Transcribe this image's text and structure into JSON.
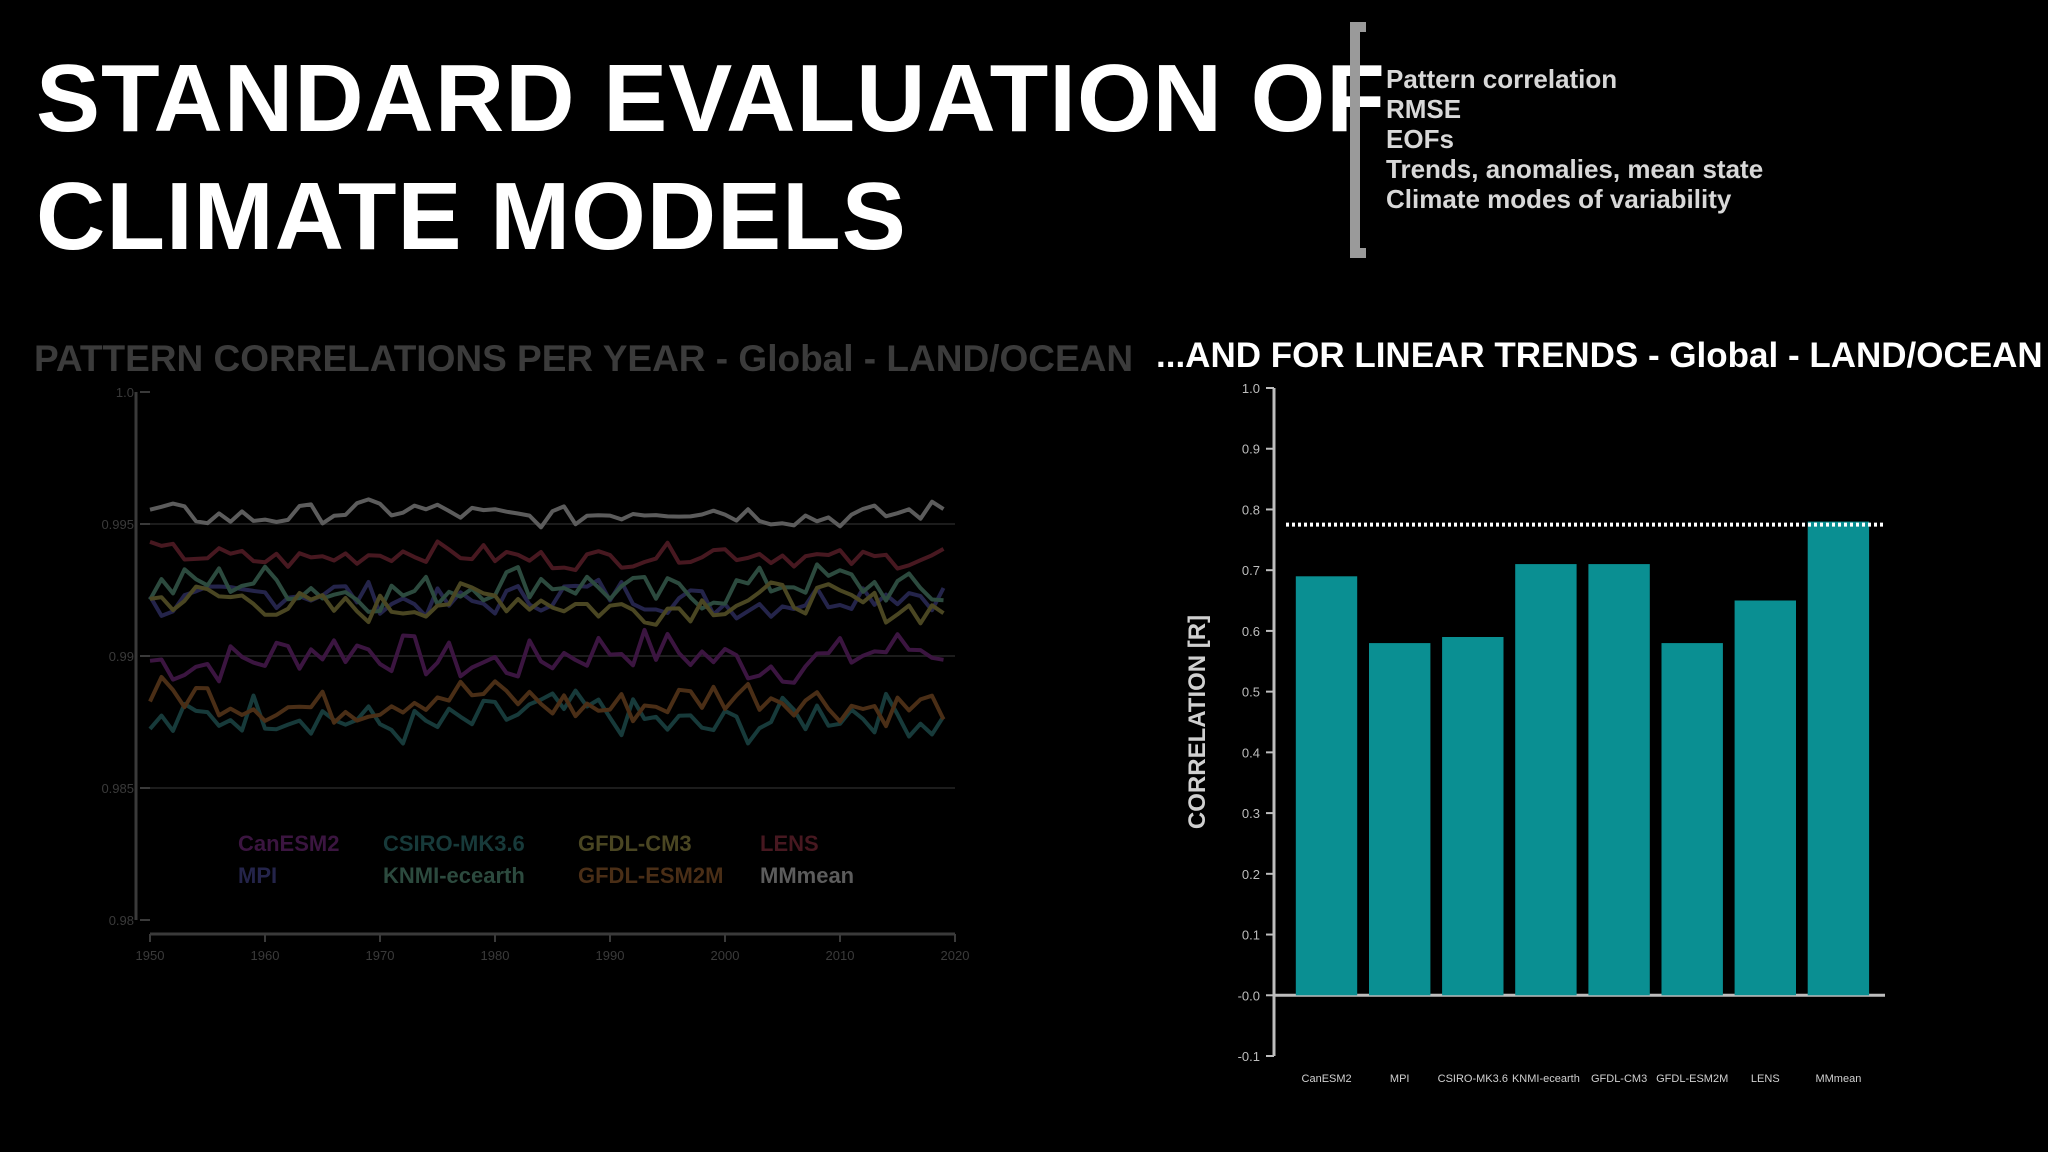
{
  "slide": {
    "title_lines": [
      "STANDARD EVALUATION OF",
      "CLIMATE MODELS"
    ],
    "metrics": [
      "Pattern correlation",
      "RMSE",
      "EOFs",
      "Trends, anomalies, mean state",
      "Climate modes of variability"
    ]
  },
  "colors": {
    "background": "#000000",
    "bar": "#0a8f92",
    "dim_axis": "#3a3a3a",
    "bright_axis": "#bdbdbd"
  },
  "chart_data": [
    {
      "type": "line",
      "title": "PATTERN CORRELATIONS PER YEAR - Global - LAND/OCEAN",
      "dimmed": true,
      "xlabel": "",
      "ylabel": "",
      "xlim": [
        1950,
        2020
      ],
      "ylim": [
        0.98,
        1.0
      ],
      "x_ticks": [
        1950,
        1960,
        1970,
        1980,
        1990,
        2000,
        2010,
        2020
      ],
      "y_ticks": [
        {
          "value": 0.98,
          "label": "0.98"
        },
        {
          "value": 0.985,
          "label": "0.985"
        },
        {
          "value": 0.99,
          "label": "0.99"
        },
        {
          "value": 0.995,
          "label": "0.995"
        },
        {
          "value": 1.0,
          "label": "1.0"
        }
      ],
      "grid": "horizontal",
      "legend_position": "bottom",
      "series": [
        {
          "name": "CanESM2",
          "color": "#3b1540",
          "base": 0.99,
          "amp": 0.0008
        },
        {
          "name": "MPI",
          "color": "#24244a",
          "base": 0.9922,
          "amp": 0.0006
        },
        {
          "name": "CSIRO-MK3.6",
          "color": "#173a3a",
          "base": 0.9876,
          "amp": 0.0008
        },
        {
          "name": "KNMI-ecearth",
          "color": "#2c4a3e",
          "base": 0.9926,
          "amp": 0.0007
        },
        {
          "name": "GFDL-CM3",
          "color": "#4a4622",
          "base": 0.992,
          "amp": 0.0006
        },
        {
          "name": "GFDL-ESM2M",
          "color": "#4a2e16",
          "base": 0.9883,
          "amp": 0.0007
        },
        {
          "name": "LENS",
          "color": "#471820",
          "base": 0.9938,
          "amp": 0.0004
        },
        {
          "name": "MMmean",
          "color": "#5c5c5c",
          "base": 0.9954,
          "amp": 0.0004
        }
      ]
    },
    {
      "type": "bar",
      "title": "...AND FOR LINEAR TRENDS - Global - LAND/OCEAN",
      "xlabel": "",
      "ylabel": "CORRELATION [R]",
      "ylim": [
        -0.1,
        1.0
      ],
      "y_ticks": [
        {
          "value": 1.0,
          "label": "1.0"
        },
        {
          "value": 0.9,
          "label": "0.9"
        },
        {
          "value": 0.8,
          "label": "0.8"
        },
        {
          "value": 0.7,
          "label": "0.7"
        },
        {
          "value": 0.6,
          "label": "0.6"
        },
        {
          "value": 0.5,
          "label": "0.5"
        },
        {
          "value": 0.4,
          "label": "0.4"
        },
        {
          "value": 0.3,
          "label": "0.3"
        },
        {
          "value": 0.2,
          "label": "0.2"
        },
        {
          "value": 0.1,
          "label": "0.1"
        },
        {
          "value": 0.0,
          "label": "-0.0"
        },
        {
          "value": -0.1,
          "label": "-0.1"
        }
      ],
      "categories": [
        "CanESM2",
        "MPI",
        "CSIRO-MK3.6",
        "KNMI-ecearth",
        "GFDL-CM3",
        "GFDL-ESM2M",
        "LENS",
        "MMmean"
      ],
      "values": [
        0.69,
        0.58,
        0.59,
        0.71,
        0.71,
        0.58,
        0.65,
        0.78
      ],
      "reference_line": 0.775,
      "grid": false
    }
  ]
}
